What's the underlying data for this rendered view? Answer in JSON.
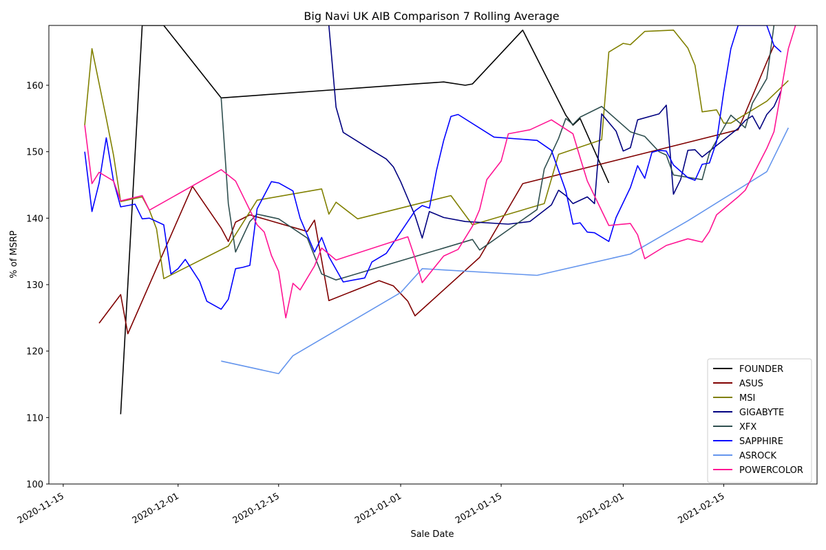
{
  "chart_data": {
    "type": "line",
    "title": "Big Navi UK AIB Comparison 7 Rolling Average",
    "xlabel": "Sale Date",
    "ylabel": "% of MSRP",
    "xlim": [
      "2020-11-13",
      "2021-02-28"
    ],
    "ylim": [
      100,
      169
    ],
    "x_ticks": [
      "2020-11-15",
      "2020-12-01",
      "2020-12-15",
      "2021-01-01",
      "2021-01-15",
      "2021-02-01",
      "2021-02-15"
    ],
    "y_ticks": [
      100,
      110,
      120,
      130,
      140,
      150,
      160
    ],
    "legend_position": "lower-right",
    "grid": false,
    "series": [
      {
        "name": "FOUNDER",
        "color": "#000000",
        "points": [
          [
            "2020-11-23",
            110.5
          ],
          [
            "2020-11-26",
            169.0
          ],
          [
            "2020-11-29",
            169.0
          ],
          [
            "2020-12-07",
            158.1
          ],
          [
            "2021-01-03",
            160.2
          ],
          [
            "2021-01-07",
            160.5
          ],
          [
            "2021-01-10",
            160.0
          ],
          [
            "2021-01-11",
            160.2
          ],
          [
            "2021-01-18",
            168.3
          ],
          [
            "2021-01-24",
            155.5
          ],
          [
            "2021-01-25",
            154.0
          ],
          [
            "2021-01-26",
            155.0
          ],
          [
            "2021-01-30",
            145.3
          ]
        ]
      },
      {
        "name": "ASUS",
        "color": "#800000",
        "points": [
          [
            "2020-11-20",
            124.2
          ],
          [
            "2020-11-23",
            128.5
          ],
          [
            "2020-11-24",
            122.6
          ],
          [
            "2020-12-03",
            144.8
          ],
          [
            "2020-12-07",
            138.5
          ],
          [
            "2020-12-08",
            136.5
          ],
          [
            "2020-12-09",
            139.4
          ],
          [
            "2020-12-11",
            140.5
          ],
          [
            "2020-12-19",
            138.0
          ],
          [
            "2020-12-20",
            139.7
          ],
          [
            "2020-12-22",
            127.6
          ],
          [
            "2020-12-29",
            130.6
          ],
          [
            "2020-12-31",
            129.8
          ],
          [
            "2021-01-02",
            127.5
          ],
          [
            "2021-01-03",
            125.3
          ],
          [
            "2021-01-12",
            134.1
          ],
          [
            "2021-01-18",
            145.2
          ],
          [
            "2021-02-17",
            153.3
          ],
          [
            "2021-02-18",
            155.8
          ],
          [
            "2021-02-21",
            163.5
          ],
          [
            "2021-02-22",
            166.0
          ]
        ]
      },
      {
        "name": "MSI",
        "color": "#808000",
        "points": [
          [
            "2020-11-18",
            154.0
          ],
          [
            "2020-11-19",
            165.5
          ],
          [
            "2020-11-21",
            155.0
          ],
          [
            "2020-11-22",
            149.5
          ],
          [
            "2020-11-23",
            142.5
          ],
          [
            "2020-11-26",
            143.2
          ],
          [
            "2020-11-27",
            141.2
          ],
          [
            "2020-11-28",
            138.4
          ],
          [
            "2020-11-29",
            130.9
          ],
          [
            "2020-12-08",
            135.8
          ],
          [
            "2020-12-12",
            142.7
          ],
          [
            "2020-12-21",
            144.4
          ],
          [
            "2020-12-22",
            140.6
          ],
          [
            "2020-12-23",
            142.4
          ],
          [
            "2020-12-26",
            139.9
          ],
          [
            "2021-01-08",
            143.4
          ],
          [
            "2021-01-11",
            139.0
          ],
          [
            "2021-01-21",
            142.2
          ],
          [
            "2021-01-23",
            149.6
          ],
          [
            "2021-01-29",
            151.8
          ],
          [
            "2021-01-30",
            165.0
          ],
          [
            "2021-02-01",
            166.3
          ],
          [
            "2021-02-02",
            166.1
          ],
          [
            "2021-02-04",
            168.1
          ],
          [
            "2021-02-08",
            168.3
          ],
          [
            "2021-02-10",
            165.6
          ],
          [
            "2021-02-11",
            163.0
          ],
          [
            "2021-02-12",
            156.0
          ],
          [
            "2021-02-14",
            156.3
          ],
          [
            "2021-02-15",
            154.3
          ],
          [
            "2021-02-16",
            154.3
          ],
          [
            "2021-02-21",
            157.6
          ],
          [
            "2021-02-24",
            160.7
          ]
        ]
      },
      {
        "name": "GIGABYTE",
        "color": "#000080",
        "points": [
          [
            "2020-12-22",
            169.0
          ],
          [
            "2020-12-23",
            156.7
          ],
          [
            "2020-12-24",
            152.9
          ],
          [
            "2020-12-28",
            150.2
          ],
          [
            "2020-12-30",
            148.9
          ],
          [
            "2020-12-31",
            147.7
          ],
          [
            "2021-01-01",
            145.5
          ],
          [
            "2021-01-03",
            140.4
          ],
          [
            "2021-01-04",
            137.0
          ],
          [
            "2021-01-05",
            141.0
          ],
          [
            "2021-01-07",
            140.1
          ],
          [
            "2021-01-10",
            139.5
          ],
          [
            "2021-01-16",
            139.1
          ],
          [
            "2021-01-19",
            139.5
          ],
          [
            "2021-01-22",
            142.0
          ],
          [
            "2021-01-23",
            144.2
          ],
          [
            "2021-01-24",
            143.4
          ],
          [
            "2021-01-25",
            142.2
          ],
          [
            "2021-01-27",
            143.2
          ],
          [
            "2021-01-28",
            142.2
          ],
          [
            "2021-01-29",
            155.7
          ],
          [
            "2021-01-31",
            153.1
          ],
          [
            "2021-02-01",
            150.1
          ],
          [
            "2021-02-02",
            150.6
          ],
          [
            "2021-02-03",
            154.8
          ],
          [
            "2021-02-06",
            155.7
          ],
          [
            "2021-02-07",
            157.0
          ],
          [
            "2021-02-08",
            143.6
          ],
          [
            "2021-02-09",
            145.8
          ],
          [
            "2021-02-10",
            150.2
          ],
          [
            "2021-02-11",
            150.3
          ],
          [
            "2021-02-12",
            149.2
          ],
          [
            "2021-02-17",
            153.5
          ],
          [
            "2021-02-18",
            154.7
          ],
          [
            "2021-02-19",
            155.4
          ],
          [
            "2021-02-20",
            153.4
          ],
          [
            "2021-02-21",
            155.6
          ],
          [
            "2021-02-22",
            156.8
          ],
          [
            "2021-02-23",
            159.2
          ]
        ]
      },
      {
        "name": "XFX",
        "color": "#2f4f4f",
        "points": [
          [
            "2020-12-07",
            158.1
          ],
          [
            "2020-12-08",
            142.2
          ],
          [
            "2020-12-09",
            134.9
          ],
          [
            "2020-12-11",
            139.5
          ],
          [
            "2020-12-12",
            140.6
          ],
          [
            "2020-12-15",
            139.9
          ],
          [
            "2020-12-19",
            137.0
          ],
          [
            "2020-12-21",
            131.6
          ],
          [
            "2020-12-23",
            130.7
          ],
          [
            "2021-01-07",
            135.5
          ],
          [
            "2021-01-11",
            136.8
          ],
          [
            "2021-01-12",
            135.2
          ],
          [
            "2021-01-20",
            141.3
          ],
          [
            "2021-01-21",
            147.4
          ],
          [
            "2021-01-23",
            152.0
          ],
          [
            "2021-01-24",
            155.0
          ],
          [
            "2021-01-25",
            154.1
          ],
          [
            "2021-01-26",
            155.2
          ],
          [
            "2021-01-29",
            156.8
          ],
          [
            "2021-02-02",
            153.0
          ],
          [
            "2021-02-04",
            152.3
          ],
          [
            "2021-02-06",
            150.0
          ],
          [
            "2021-02-07",
            149.5
          ],
          [
            "2021-02-08",
            146.5
          ],
          [
            "2021-02-12",
            145.8
          ],
          [
            "2021-02-13",
            149.8
          ],
          [
            "2021-02-16",
            155.5
          ],
          [
            "2021-02-18",
            153.6
          ],
          [
            "2021-02-19",
            157.3
          ],
          [
            "2021-02-21",
            161.0
          ],
          [
            "2021-02-22",
            169.0
          ]
        ]
      },
      {
        "name": "SAPPHIRE",
        "color": "#0000ff",
        "points": [
          [
            "2020-11-18",
            150.0
          ],
          [
            "2020-11-19",
            141.0
          ],
          [
            "2020-11-20",
            145.3
          ],
          [
            "2020-11-21",
            152.1
          ],
          [
            "2020-11-22",
            145.6
          ],
          [
            "2020-11-23",
            141.7
          ],
          [
            "2020-11-25",
            142.1
          ],
          [
            "2020-11-26",
            139.9
          ],
          [
            "2020-11-27",
            140.0
          ],
          [
            "2020-11-29",
            139.0
          ],
          [
            "2020-11-30",
            131.6
          ],
          [
            "2020-12-01",
            132.4
          ],
          [
            "2020-12-02",
            133.8
          ],
          [
            "2020-12-04",
            130.5
          ],
          [
            "2020-12-05",
            127.5
          ],
          [
            "2020-12-07",
            126.3
          ],
          [
            "2020-12-08",
            127.8
          ],
          [
            "2020-12-09",
            132.4
          ],
          [
            "2020-12-10",
            132.6
          ],
          [
            "2020-12-11",
            132.9
          ],
          [
            "2020-12-12",
            141.4
          ],
          [
            "2020-12-14",
            145.5
          ],
          [
            "2020-12-15",
            145.3
          ],
          [
            "2020-12-17",
            144.1
          ],
          [
            "2020-12-18",
            140.0
          ],
          [
            "2020-12-20",
            134.9
          ],
          [
            "2020-12-21",
            137.1
          ],
          [
            "2020-12-22",
            134.2
          ],
          [
            "2020-12-24",
            130.4
          ],
          [
            "2020-12-27",
            131.0
          ],
          [
            "2020-12-28",
            133.4
          ],
          [
            "2020-12-30",
            134.7
          ],
          [
            "2021-01-03",
            141.1
          ],
          [
            "2021-01-04",
            141.9
          ],
          [
            "2021-01-05",
            141.5
          ],
          [
            "2021-01-06",
            147.2
          ],
          [
            "2021-01-07",
            151.7
          ],
          [
            "2021-01-08",
            155.3
          ],
          [
            "2021-01-09",
            155.6
          ],
          [
            "2021-01-14",
            152.2
          ],
          [
            "2021-01-20",
            151.7
          ],
          [
            "2021-01-22",
            150.2
          ],
          [
            "2021-01-24",
            144.1
          ],
          [
            "2021-01-25",
            139.1
          ],
          [
            "2021-01-26",
            139.3
          ],
          [
            "2021-01-27",
            137.9
          ],
          [
            "2021-01-28",
            137.8
          ],
          [
            "2021-01-30",
            136.5
          ],
          [
            "2021-01-31",
            140.1
          ],
          [
            "2021-02-02",
            144.6
          ],
          [
            "2021-02-03",
            147.9
          ],
          [
            "2021-02-04",
            146.0
          ],
          [
            "2021-02-05",
            149.9
          ],
          [
            "2021-02-06",
            150.2
          ],
          [
            "2021-02-07",
            150.1
          ],
          [
            "2021-02-08",
            148.0
          ],
          [
            "2021-02-10",
            146.1
          ],
          [
            "2021-02-11",
            145.7
          ],
          [
            "2021-02-12",
            148.1
          ],
          [
            "2021-02-13",
            148.3
          ],
          [
            "2021-02-14",
            151.5
          ],
          [
            "2021-02-15",
            159.0
          ],
          [
            "2021-02-16",
            165.5
          ],
          [
            "2021-02-17",
            169.0
          ],
          [
            "2021-02-21",
            169.0
          ],
          [
            "2021-02-22",
            166.0
          ],
          [
            "2021-02-23",
            165.0
          ]
        ]
      },
      {
        "name": "ASROCK",
        "color": "#6495ed",
        "points": [
          [
            "2020-12-07",
            118.5
          ],
          [
            "2020-12-15",
            116.6
          ],
          [
            "2020-12-17",
            119.3
          ],
          [
            "2021-01-01",
            128.8
          ],
          [
            "2021-01-04",
            132.4
          ],
          [
            "2021-01-20",
            131.4
          ],
          [
            "2021-02-02",
            134.6
          ],
          [
            "2021-02-10",
            139.6
          ],
          [
            "2021-02-21",
            147.0
          ],
          [
            "2021-02-24",
            153.6
          ]
        ]
      },
      {
        "name": "POWERCOLOR",
        "color": "#ff1493",
        "points": [
          [
            "2020-11-18",
            154.0
          ],
          [
            "2020-11-19",
            145.2
          ],
          [
            "2020-11-20",
            146.9
          ],
          [
            "2020-11-22",
            145.6
          ],
          [
            "2020-11-23",
            142.6
          ],
          [
            "2020-11-26",
            143.4
          ],
          [
            "2020-11-27",
            141.2
          ],
          [
            "2020-12-07",
            147.3
          ],
          [
            "2020-12-09",
            145.6
          ],
          [
            "2020-12-12",
            139.0
          ],
          [
            "2020-12-13",
            137.9
          ],
          [
            "2020-12-14",
            134.4
          ],
          [
            "2020-12-15",
            132.0
          ],
          [
            "2020-12-16",
            125.0
          ],
          [
            "2020-12-17",
            130.2
          ],
          [
            "2020-12-18",
            129.2
          ],
          [
            "2020-12-20",
            132.8
          ],
          [
            "2020-12-21",
            135.5
          ],
          [
            "2020-12-23",
            133.7
          ],
          [
            "2021-01-02",
            137.2
          ],
          [
            "2021-01-03",
            134.0
          ],
          [
            "2021-01-04",
            130.3
          ],
          [
            "2021-01-07",
            134.3
          ],
          [
            "2021-01-09",
            135.3
          ],
          [
            "2021-01-11",
            138.8
          ],
          [
            "2021-01-12",
            141.3
          ],
          [
            "2021-01-13",
            145.8
          ],
          [
            "2021-01-15",
            148.6
          ],
          [
            "2021-01-16",
            152.7
          ],
          [
            "2021-01-19",
            153.3
          ],
          [
            "2021-01-22",
            154.8
          ],
          [
            "2021-01-25",
            152.7
          ],
          [
            "2021-01-26",
            149.1
          ],
          [
            "2021-01-27",
            145.6
          ],
          [
            "2021-01-30",
            138.9
          ],
          [
            "2021-02-02",
            139.2
          ],
          [
            "2021-02-03",
            137.5
          ],
          [
            "2021-02-04",
            133.9
          ],
          [
            "2021-02-07",
            135.9
          ],
          [
            "2021-02-10",
            136.9
          ],
          [
            "2021-02-12",
            136.4
          ],
          [
            "2021-02-13",
            138.0
          ],
          [
            "2021-02-14",
            140.5
          ],
          [
            "2021-02-17",
            143.2
          ],
          [
            "2021-02-18",
            144.2
          ],
          [
            "2021-02-21",
            150.5
          ],
          [
            "2021-02-22",
            153.0
          ],
          [
            "2021-02-23",
            159.2
          ],
          [
            "2021-02-24",
            165.5
          ],
          [
            "2021-02-25",
            169.0
          ]
        ]
      }
    ]
  }
}
